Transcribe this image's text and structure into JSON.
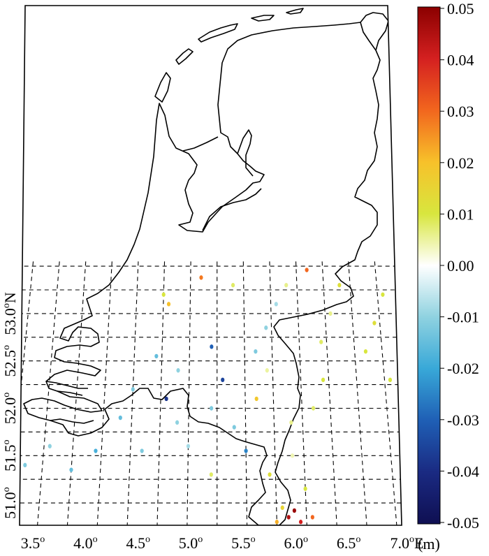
{
  "map": {
    "lon_ticks": [
      {
        "value": 3.5,
        "num": "3.5",
        "deg": "o",
        "suffix": ""
      },
      {
        "value": 4.0,
        "num": "4.0",
        "deg": "o",
        "suffix": ""
      },
      {
        "value": 4.5,
        "num": "4.5",
        "deg": "o",
        "suffix": ""
      },
      {
        "value": 5.0,
        "num": "5.0",
        "deg": "o",
        "suffix": ""
      },
      {
        "value": 5.5,
        "num": "5.5",
        "deg": "o",
        "suffix": ""
      },
      {
        "value": 6.0,
        "num": "6.0",
        "deg": "o",
        "suffix": ""
      },
      {
        "value": 6.5,
        "num": "6.5",
        "deg": "o",
        "suffix": ""
      },
      {
        "value": 7.0,
        "num": "7.0",
        "deg": "o",
        "suffix": "E"
      }
    ],
    "lat_ticks": [
      {
        "value": 51.0,
        "num": "51.0",
        "deg": "o",
        "suffix": ""
      },
      {
        "value": 51.5,
        "num": "51.5",
        "deg": "o",
        "suffix": ""
      },
      {
        "value": 52.0,
        "num": "52.0",
        "deg": "o",
        "suffix": ""
      },
      {
        "value": 52.5,
        "num": "52.5",
        "deg": "o",
        "suffix": ""
      },
      {
        "value": 53.0,
        "num": "53.0",
        "deg": "o",
        "suffix": "N"
      }
    ],
    "grid": "dashed, every 0.25 degree",
    "boundary": "Netherlands"
  },
  "colorbar": {
    "ticks": [
      "0.05",
      "0.04",
      "0.03",
      "0.02",
      "0.01",
      "0.00",
      "-0.01",
      "-0.02",
      "-0.03",
      "-0.04",
      "-0.05"
    ],
    "unit": "(m)",
    "colors": [
      "#8b0000",
      "#d42020",
      "#f2661e",
      "#f7c12a",
      "#d8e63e",
      "#ffffff",
      "#8fd2e0",
      "#38a8d8",
      "#1f5fb5",
      "#1a2a82",
      "#0f0f52"
    ],
    "range": [
      -0.05,
      0.05
    ]
  },
  "stations": [
    {
      "lon": 6.1,
      "lat": 53.46,
      "value": 0.03
    },
    {
      "lon": 5.1,
      "lat": 53.38,
      "value": 0.028
    },
    {
      "lon": 4.8,
      "lat": 53.1,
      "value": 0.02
    },
    {
      "lon": 4.75,
      "lat": 53.2,
      "value": 0.01
    },
    {
      "lon": 5.4,
      "lat": 53.3,
      "value": 0.008
    },
    {
      "lon": 5.9,
      "lat": 53.3,
      "value": 0.006
    },
    {
      "lon": 6.4,
      "lat": 53.3,
      "value": 0.012
    },
    {
      "lon": 6.8,
      "lat": 53.2,
      "value": 0.01
    },
    {
      "lon": 5.8,
      "lat": 53.1,
      "value": -0.008
    },
    {
      "lon": 6.3,
      "lat": 53.0,
      "value": 0.006
    },
    {
      "lon": 6.7,
      "lat": 52.9,
      "value": 0.012
    },
    {
      "lon": 5.7,
      "lat": 52.85,
      "value": -0.01
    },
    {
      "lon": 5.2,
      "lat": 52.65,
      "value": -0.03
    },
    {
      "lon": 5.6,
      "lat": 52.6,
      "value": -0.012
    },
    {
      "lon": 6.2,
      "lat": 52.7,
      "value": 0.008
    },
    {
      "lon": 6.6,
      "lat": 52.6,
      "value": 0.01
    },
    {
      "lon": 4.7,
      "lat": 52.55,
      "value": -0.015
    },
    {
      "lon": 4.9,
      "lat": 52.4,
      "value": -0.01
    },
    {
      "lon": 5.3,
      "lat": 52.3,
      "value": -0.035
    },
    {
      "lon": 5.7,
      "lat": 52.4,
      "value": 0.005
    },
    {
      "lon": 6.2,
      "lat": 52.3,
      "value": 0.01
    },
    {
      "lon": 6.8,
      "lat": 52.3,
      "value": 0.01
    },
    {
      "lon": 4.5,
      "lat": 52.2,
      "value": -0.012
    },
    {
      "lon": 4.8,
      "lat": 52.1,
      "value": -0.038
    },
    {
      "lon": 5.2,
      "lat": 52.0,
      "value": -0.012
    },
    {
      "lon": 5.6,
      "lat": 52.1,
      "value": 0.018
    },
    {
      "lon": 6.1,
      "lat": 52.0,
      "value": 0.008
    },
    {
      "lon": 4.4,
      "lat": 51.9,
      "value": -0.015
    },
    {
      "lon": 4.9,
      "lat": 51.85,
      "value": -0.01
    },
    {
      "lon": 5.4,
      "lat": 51.8,
      "value": -0.012
    },
    {
      "lon": 5.9,
      "lat": 51.85,
      "value": 0.006
    },
    {
      "lon": 3.8,
      "lat": 51.6,
      "value": -0.01
    },
    {
      "lon": 4.2,
      "lat": 51.55,
      "value": -0.018
    },
    {
      "lon": 4.6,
      "lat": 51.55,
      "value": -0.012
    },
    {
      "lon": 5.0,
      "lat": 51.6,
      "value": -0.008
    },
    {
      "lon": 5.5,
      "lat": 51.55,
      "value": -0.025
    },
    {
      "lon": 5.9,
      "lat": 51.5,
      "value": 0.004
    },
    {
      "lon": 3.6,
      "lat": 51.4,
      "value": -0.012
    },
    {
      "lon": 4.0,
      "lat": 51.35,
      "value": -0.015
    },
    {
      "lon": 5.2,
      "lat": 51.3,
      "value": 0.008
    },
    {
      "lon": 5.7,
      "lat": 51.3,
      "value": 0.012
    },
    {
      "lon": 6.0,
      "lat": 51.15,
      "value": 0.01
    },
    {
      "lon": 5.8,
      "lat": 50.95,
      "value": 0.015
    },
    {
      "lon": 5.85,
      "lat": 50.85,
      "value": 0.045
    },
    {
      "lon": 5.95,
      "lat": 50.8,
      "value": 0.04
    },
    {
      "lon": 5.75,
      "lat": 50.8,
      "value": 0.022
    },
    {
      "lon": 6.05,
      "lat": 50.85,
      "value": 0.03
    },
    {
      "lon": 5.9,
      "lat": 50.92,
      "value": 0.048
    }
  ]
}
